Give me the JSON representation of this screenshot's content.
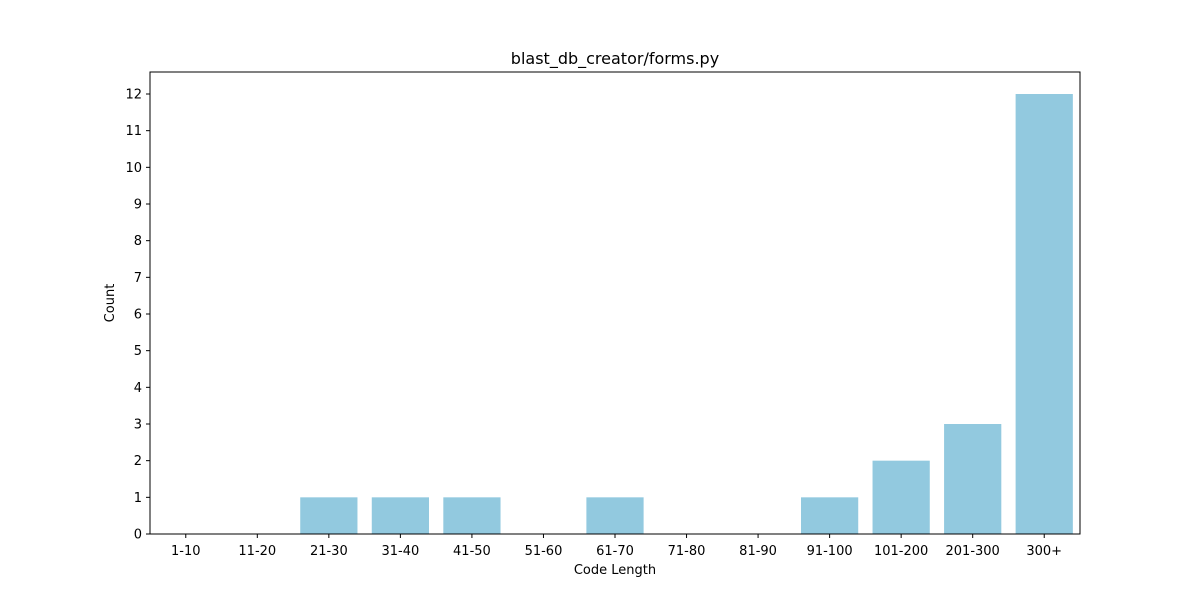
{
  "colors": {
    "bar": "#92c9df",
    "axis": "#000000",
    "background": "#ffffff"
  },
  "chart_data": {
    "type": "bar",
    "title": "blast_db_creator/forms.py",
    "xlabel": "Code Length",
    "ylabel": "Count",
    "categories": [
      "1-10",
      "11-20",
      "21-30",
      "31-40",
      "41-50",
      "51-60",
      "61-70",
      "71-80",
      "81-90",
      "91-100",
      "101-200",
      "201-300",
      "300+"
    ],
    "values": [
      0,
      0,
      1,
      1,
      1,
      0,
      1,
      0,
      0,
      1,
      2,
      3,
      12
    ],
    "ylim": [
      0,
      12.6
    ],
    "yticks": [
      0,
      1,
      2,
      3,
      4,
      5,
      6,
      7,
      8,
      9,
      10,
      11,
      12
    ],
    "grid": false,
    "legend": "none"
  }
}
